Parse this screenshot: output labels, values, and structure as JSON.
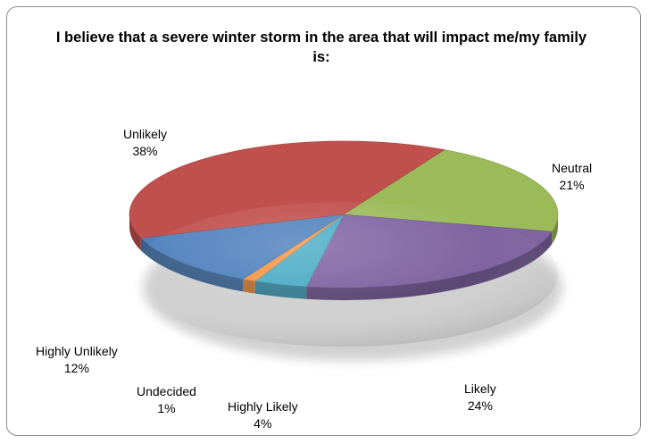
{
  "chart_data": {
    "type": "pie",
    "title": "I believe that a severe winter storm in the area that will impact me/my family is:",
    "slices": [
      {
        "label": "Neutral",
        "value": 21,
        "value_label": "21%",
        "color": "#9bbb59"
      },
      {
        "label": "Likely",
        "value": 24,
        "value_label": "24%",
        "color": "#8064a2"
      },
      {
        "label": "Highly Likely",
        "value": 4,
        "value_label": "4%",
        "color": "#4bacc6"
      },
      {
        "label": "Undecided",
        "value": 1,
        "value_label": "1%",
        "color": "#f79646"
      },
      {
        "label": "Highly Unlikely",
        "value": 12,
        "value_label": "12%",
        "color": "#4f81bd"
      },
      {
        "label": "Unlikely",
        "value": 38,
        "value_label": "38%",
        "color": "#c0504d"
      }
    ],
    "legend": "none"
  }
}
